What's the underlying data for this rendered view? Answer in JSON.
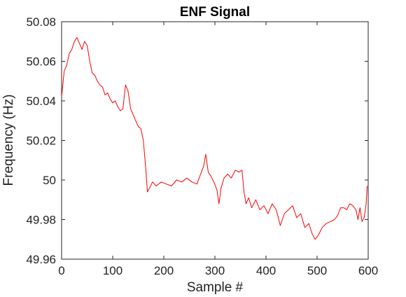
{
  "chart_data": {
    "type": "line",
    "title": "ENF Signal",
    "xlabel": "Sample #",
    "ylabel": "Frequency (Hz)",
    "xlim": [
      0,
      600
    ],
    "ylim": [
      49.96,
      50.08
    ],
    "xticks": [
      0,
      100,
      200,
      300,
      400,
      500,
      600
    ],
    "xtick_labels": [
      "0",
      "100",
      "200",
      "300",
      "400",
      "500",
      "600"
    ],
    "yticks": [
      49.96,
      49.98,
      50.0,
      50.02,
      50.04,
      50.06,
      50.08
    ],
    "ytick_labels": [
      "49.96",
      "49.98",
      "50",
      "50.02",
      "50.04",
      "50.06",
      "50.08"
    ],
    "grid": false,
    "legend": "none",
    "series": [
      {
        "color": "#ff0000",
        "x": [
          0,
          5,
          10,
          15,
          20,
          25,
          30,
          35,
          40,
          45,
          50,
          55,
          60,
          65,
          70,
          75,
          80,
          85,
          90,
          95,
          100,
          105,
          110,
          115,
          120,
          125,
          130,
          135,
          140,
          145,
          150,
          155,
          160,
          165,
          168,
          172,
          178,
          185,
          195,
          205,
          215,
          225,
          235,
          245,
          255,
          265,
          272,
          278,
          282,
          287,
          292,
          298,
          304,
          308,
          312,
          318,
          325,
          332,
          340,
          347,
          353,
          357,
          361,
          366,
          372,
          380,
          388,
          396,
          404,
          412,
          420,
          428,
          436,
          444,
          452,
          460,
          468,
          476,
          484,
          490,
          496,
          502,
          510,
          518,
          526,
          534,
          540,
          546,
          552,
          558,
          564,
          570,
          576,
          580,
          584,
          588,
          592,
          596,
          598
        ],
        "y": [
          50.042,
          50.055,
          50.058,
          50.064,
          50.066,
          50.07,
          50.072,
          50.069,
          50.066,
          50.07,
          50.068,
          50.06,
          50.054,
          50.053,
          50.05,
          50.048,
          50.047,
          50.043,
          50.044,
          50.041,
          50.039,
          50.04,
          50.037,
          50.035,
          50.036,
          50.048,
          50.045,
          50.036,
          50.033,
          50.03,
          50.027,
          50.026,
          50.02,
          50.005,
          49.994,
          49.996,
          49.999,
          49.997,
          49.999,
          49.998,
          49.997,
          50.0,
          49.999,
          50.001,
          49.999,
          49.998,
          50.003,
          50.007,
          50.013,
          50.004,
          50.002,
          49.999,
          49.995,
          49.988,
          49.996,
          50.001,
          50.003,
          50.001,
          50.005,
          50.004,
          50.005,
          49.994,
          49.988,
          49.991,
          49.986,
          49.99,
          49.985,
          49.987,
          49.983,
          49.988,
          49.985,
          49.977,
          49.983,
          49.985,
          49.987,
          49.981,
          49.983,
          49.976,
          49.978,
          49.973,
          49.97,
          49.972,
          49.976,
          49.978,
          49.979,
          49.98,
          49.982,
          49.986,
          49.986,
          49.985,
          49.988,
          49.987,
          49.985,
          49.98,
          49.986,
          49.979,
          49.981,
          49.988,
          49.997
        ]
      }
    ]
  }
}
